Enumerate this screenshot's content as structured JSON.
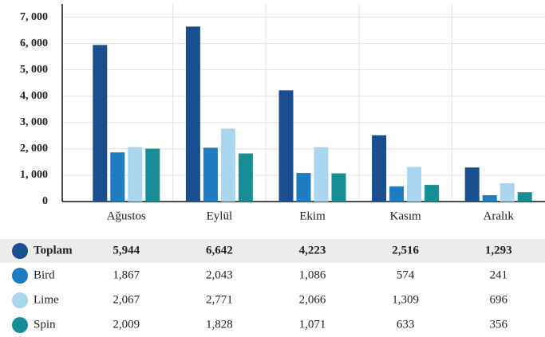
{
  "chart_data": {
    "type": "bar",
    "categories": [
      "Ağustos",
      "Eylül",
      "Ekim",
      "Kasım",
      "Aralık"
    ],
    "series": [
      {
        "name": "Toplam",
        "color": "#1b4e8e",
        "values": [
          5944,
          6642,
          4223,
          2516,
          1293
        ],
        "value_labels": [
          "5,944",
          "6,642",
          "4,223",
          "2,516",
          "1,293"
        ]
      },
      {
        "name": "Bird",
        "color": "#1f7cc0",
        "values": [
          1867,
          2043,
          1086,
          574,
          241
        ],
        "value_labels": [
          "1,867",
          "2,043",
          "1,086",
          "574",
          "241"
        ]
      },
      {
        "name": "Lime",
        "color": "#a9d5ef",
        "values": [
          2067,
          2771,
          2066,
          1309,
          696
        ],
        "value_labels": [
          "2,067",
          "2,771",
          "2,066",
          "1,309",
          "696"
        ]
      },
      {
        "name": "Spin",
        "color": "#178e96",
        "values": [
          2009,
          1828,
          1071,
          633,
          356
        ],
        "value_labels": [
          "2,009",
          "1,828",
          "1,071",
          "633",
          "356"
        ]
      }
    ],
    "ylim": [
      0,
      7500
    ],
    "yticks": [
      0,
      {
        "value": 1000,
        "label": "1, 000"
      },
      {
        "value": 2000,
        "label": "2, 000"
      },
      {
        "value": 3000,
        "label": "3, 000"
      },
      {
        "value": 4000,
        "label": "4, 000"
      },
      {
        "value": 5000,
        "label": "5, 000"
      },
      {
        "value": 6000,
        "label": "6, 000"
      },
      {
        "value": 7000,
        "label": "7, 000"
      }
    ],
    "grid": true
  }
}
